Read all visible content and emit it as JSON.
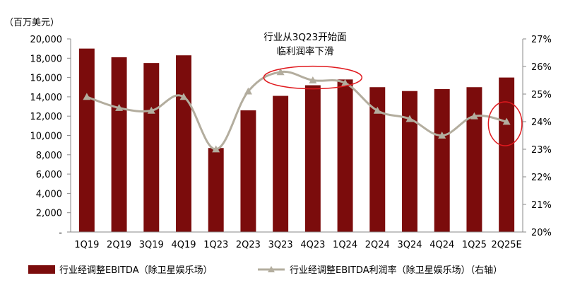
{
  "chart_data": {
    "type": "bar",
    "categories": [
      "1Q19",
      "2Q19",
      "3Q19",
      "4Q19",
      "1Q23",
      "2Q23",
      "3Q23",
      "4Q23",
      "1Q24",
      "2Q24",
      "3Q24",
      "4Q24",
      "1Q25",
      "2Q25E"
    ],
    "series": [
      {
        "name": "行业经调整EBITDA（除卫星娱乐场）",
        "type": "bar",
        "axis": "left",
        "color": "#7b0c0c",
        "values": [
          19000,
          18100,
          17500,
          18300,
          8700,
          12600,
          14100,
          15200,
          15800,
          15000,
          14600,
          14800,
          15000,
          16000
        ]
      },
      {
        "name": "行业经调整EBITDA利润率（除卫星娱乐场）（右轴）",
        "type": "line",
        "axis": "right",
        "color": "#b3ad9e",
        "marker": "triangle",
        "values": [
          24.9,
          24.5,
          24.4,
          24.9,
          23.0,
          25.1,
          25.8,
          25.5,
          25.4,
          24.4,
          24.1,
          23.5,
          24.2,
          24.0
        ]
      }
    ],
    "y_unit_label": "（百万美元）",
    "ylim": [
      0,
      20000
    ],
    "yticks": [
      "-",
      "2,000",
      "4,000",
      "6,000",
      "8,000",
      "10,000",
      "12,000",
      "14,000",
      "16,000",
      "18,000",
      "20,000"
    ],
    "y2lim": [
      20,
      27
    ],
    "y2ticks": [
      "20%",
      "21%",
      "22%",
      "23%",
      "24%",
      "25%",
      "26%",
      "27%"
    ],
    "annotation": {
      "lines": [
        "行业从3Q23开始面",
        "临利润率下滑"
      ],
      "highlight_color": "#e0191e"
    },
    "legend": {
      "placement": "bottom",
      "bar_label": "行业经调整EBITDA（除卫星娱乐场）",
      "line_label": "行业经调整EBITDA利润率（除卫星娱乐场）（右轴）"
    },
    "grid": false
  }
}
